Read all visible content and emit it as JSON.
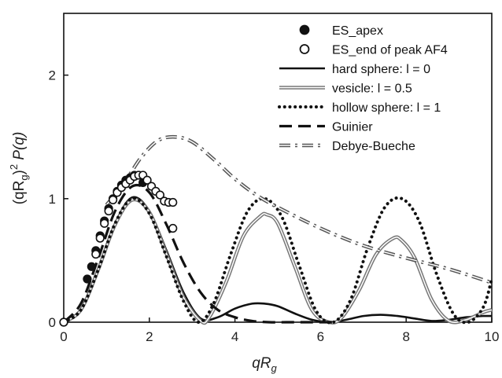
{
  "chart_data": {
    "type": "line",
    "xlabel": "qR",
    "xlabel_sub": "g",
    "ylabel_pre": "(qR",
    "ylabel_sub": "g",
    "ylabel_post": ")",
    "ylabel_sup": "2",
    "ylabel_tail": " P(q)",
    "xlim": [
      0,
      10
    ],
    "ylim": [
      0,
      2.5
    ],
    "x_ticks": [
      "0",
      "2",
      "4",
      "6",
      "8",
      "10"
    ],
    "y_ticks": [
      "0",
      "1",
      "2"
    ],
    "grid": false,
    "legend_position": "top-right",
    "series": [
      {
        "name": "ES_apex",
        "style": "filled-circle",
        "x": [
          0.0,
          0.55,
          0.65,
          0.75,
          0.85,
          0.95,
          1.05,
          1.15,
          1.25,
          1.35,
          1.45,
          1.55,
          1.65,
          1.75,
          1.85
        ],
        "y": [
          0.0,
          0.35,
          0.45,
          0.58,
          0.7,
          0.82,
          0.92,
          1.0,
          1.06,
          1.11,
          1.15,
          1.17,
          1.19,
          1.19,
          1.13
        ]
      },
      {
        "name": "ES_end of peak AF4",
        "style": "open-circle",
        "x": [
          0.0,
          0.75,
          0.85,
          0.95,
          1.05,
          1.15,
          1.25,
          1.35,
          1.45,
          1.55,
          1.65,
          1.75,
          1.85,
          1.95,
          2.05,
          2.15,
          2.25,
          2.35,
          2.45,
          2.55,
          2.55
        ],
        "y": [
          0.0,
          0.55,
          0.68,
          0.8,
          0.9,
          0.99,
          1.05,
          1.09,
          1.12,
          1.15,
          1.18,
          1.19,
          1.19,
          1.15,
          1.1,
          1.06,
          1.03,
          0.98,
          0.97,
          0.97,
          0.76
        ]
      },
      {
        "name": "hard sphere: l = 0",
        "style": "solid-black",
        "x": [
          0.0,
          0.4,
          0.8,
          1.2,
          1.6,
          2.0,
          2.4,
          2.8,
          3.2,
          3.6,
          4.0,
          4.4,
          4.7,
          5.0,
          5.4,
          5.8,
          6.2,
          6.6,
          7.0,
          7.4,
          7.8,
          8.2,
          8.6,
          9.0,
          9.4,
          9.8,
          10.0
        ],
        "y": [
          0.0,
          0.1,
          0.43,
          0.8,
          1.01,
          0.9,
          0.58,
          0.24,
          0.03,
          0.04,
          0.11,
          0.15,
          0.15,
          0.13,
          0.07,
          0.02,
          0.0,
          0.02,
          0.05,
          0.06,
          0.05,
          0.03,
          0.01,
          0.02,
          0.04,
          0.05,
          0.05
        ]
      },
      {
        "name": "vesicle: l = 0.5",
        "style": "double-gray",
        "x": [
          0.0,
          0.4,
          0.8,
          1.2,
          1.6,
          2.0,
          2.4,
          2.8,
          3.2,
          3.4,
          3.8,
          4.2,
          4.6,
          4.75,
          5.0,
          5.4,
          5.8,
          6.2,
          6.5,
          6.9,
          7.3,
          7.7,
          7.9,
          8.2,
          8.6,
          9.0,
          9.4,
          9.8,
          10.0
        ],
        "y": [
          0.0,
          0.1,
          0.42,
          0.79,
          0.99,
          0.89,
          0.55,
          0.2,
          0.01,
          0.04,
          0.33,
          0.7,
          0.86,
          0.87,
          0.8,
          0.45,
          0.1,
          0.0,
          0.04,
          0.26,
          0.55,
          0.68,
          0.66,
          0.52,
          0.18,
          0.01,
          0.02,
          0.08,
          0.1
        ]
      },
      {
        "name": "hollow sphere: l = 1",
        "style": "dotted-black",
        "x": [
          0.0,
          0.4,
          0.8,
          1.2,
          1.6,
          2.0,
          2.4,
          2.8,
          3.15,
          3.5,
          3.9,
          4.3,
          4.7,
          5.1,
          5.5,
          5.9,
          6.3,
          6.7,
          7.1,
          7.5,
          7.9,
          8.3,
          8.7,
          9.1,
          9.45,
          9.8,
          10.0
        ],
        "y": [
          0.0,
          0.1,
          0.42,
          0.8,
          1.0,
          0.88,
          0.53,
          0.17,
          0.0,
          0.15,
          0.55,
          0.9,
          1.0,
          0.85,
          0.46,
          0.09,
          0.0,
          0.18,
          0.6,
          0.93,
          1.0,
          0.82,
          0.4,
          0.07,
          0.0,
          0.12,
          0.35
        ]
      },
      {
        "name": "Guinier",
        "style": "dashed-black",
        "x": [
          0.0,
          0.4,
          0.8,
          1.2,
          1.6,
          2.0,
          2.4,
          2.8,
          3.2,
          3.6,
          4.0,
          4.4,
          4.8,
          5.2,
          5.6,
          6.0,
          6.4
        ],
        "y": [
          0.0,
          0.15,
          0.51,
          0.9,
          1.1,
          1.05,
          0.79,
          0.48,
          0.24,
          0.1,
          0.04,
          0.01,
          0.0,
          0.0,
          0.0,
          0.0,
          0.0
        ]
      },
      {
        "name": "Debye-Bueche",
        "style": "dashdot-gray",
        "x": [
          1.0,
          1.4,
          1.8,
          2.2,
          2.6,
          3.0,
          3.5,
          4.0,
          4.5,
          5.0,
          6.0,
          7.0,
          8.0,
          9.0,
          10.0
        ],
        "y": [
          0.95,
          1.12,
          1.33,
          1.47,
          1.5,
          1.46,
          1.32,
          1.16,
          1.03,
          0.93,
          0.76,
          0.62,
          0.52,
          0.43,
          0.32
        ]
      }
    ]
  }
}
